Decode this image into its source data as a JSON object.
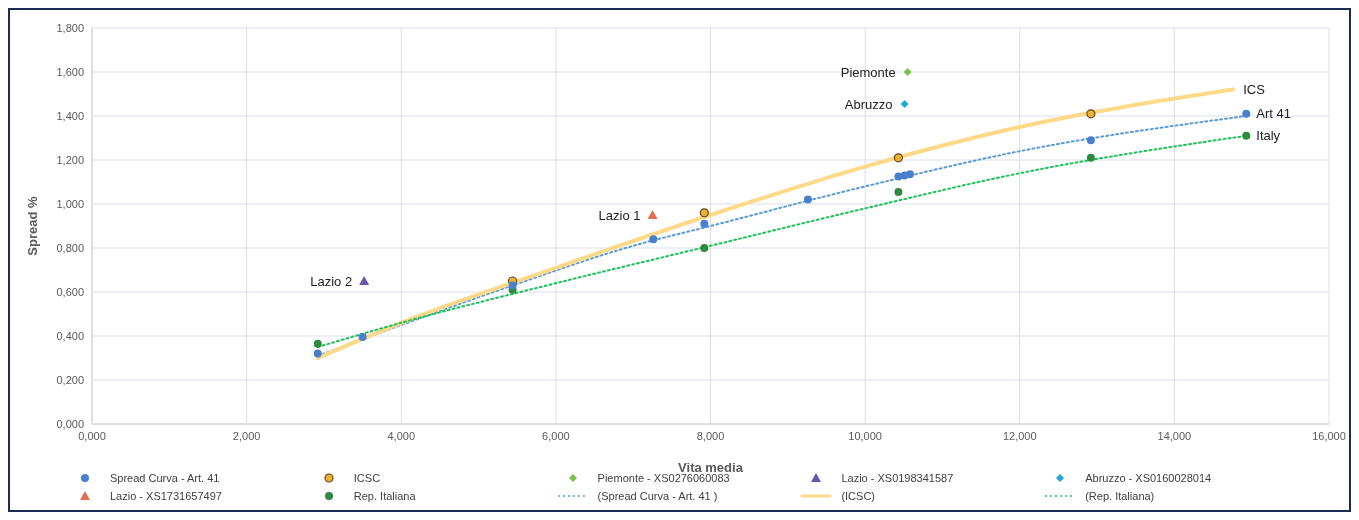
{
  "chart_data": {
    "type": "scatter",
    "xlabel": "Vita media",
    "ylabel": "Spread %",
    "xlim": [
      0,
      16
    ],
    "ylim": [
      0,
      1.8
    ],
    "xticks": [
      {
        "value": 0,
        "label": "0,000"
      },
      {
        "value": 2,
        "label": "2,000"
      },
      {
        "value": 4,
        "label": "4,000"
      },
      {
        "value": 6,
        "label": "6,000"
      },
      {
        "value": 8,
        "label": "8,000"
      },
      {
        "value": 10,
        "label": "10,000"
      },
      {
        "value": 12,
        "label": "12,000"
      },
      {
        "value": 14,
        "label": "14,000"
      },
      {
        "value": 16,
        "label": "16,000"
      }
    ],
    "yticks": [
      {
        "value": 0,
        "label": "0,000"
      },
      {
        "value": 0.2,
        "label": "0,200"
      },
      {
        "value": 0.4,
        "label": "0,400"
      },
      {
        "value": 0.6,
        "label": "0,600"
      },
      {
        "value": 0.8,
        "label": "0,800"
      },
      {
        "value": 1,
        "label": "1,000"
      },
      {
        "value": 1.2,
        "label": "1,200"
      },
      {
        "value": 1.4,
        "label": "1,400"
      },
      {
        "value": 1.6,
        "label": "1,600"
      },
      {
        "value": 1.8,
        "label": "1,800"
      }
    ],
    "grid": true,
    "legend": "bottom",
    "series": [
      {
        "name": "Spread Curva - Art. 41",
        "marker": "circle",
        "color": "#4a7fd0",
        "x": [
          2.92,
          3.5,
          5.44,
          7.26,
          7.92,
          9.26,
          10.43,
          10.51,
          10.58,
          12.92,
          14.93
        ],
        "values": [
          0.32,
          0.395,
          0.63,
          0.84,
          0.91,
          1.02,
          1.125,
          1.13,
          1.135,
          1.29,
          1.41
        ]
      },
      {
        "name": "ICSC",
        "marker": "circle",
        "color": "#f0b030",
        "x": [
          5.44,
          7.92,
          10.43,
          12.92
        ],
        "values": [
          0.65,
          0.96,
          1.21,
          1.41
        ]
      },
      {
        "name": "Piemonte - XS0276060083",
        "marker": "diamond",
        "color": "#7cc04a",
        "x": [
          10.55
        ],
        "values": [
          1.6
        ]
      },
      {
        "name": "Lazio - XS0198341587",
        "marker": "triangle",
        "color": "#6a55b0",
        "x": [
          3.52
        ],
        "values": [
          0.65
        ]
      },
      {
        "name": "Abruzzo - XS0160028014",
        "marker": "diamond",
        "color": "#20a8d8",
        "x": [
          10.51
        ],
        "values": [
          1.455
        ]
      },
      {
        "name": "Lazio - XS1731657497",
        "marker": "triangle",
        "color": "#e07050",
        "x": [
          7.25
        ],
        "values": [
          0.95
        ]
      },
      {
        "name": "Rep. Italiana",
        "marker": "circle",
        "color": "#2e8b3e",
        "x": [
          2.92,
          5.44,
          7.92,
          10.43,
          12.92,
          14.93
        ],
        "values": [
          0.365,
          0.61,
          0.8,
          1.055,
          1.21,
          1.31
        ]
      },
      {
        "name": "(Spread Curva - Art. 41 )",
        "type": "line",
        "line_style": "dotted",
        "marker": "none",
        "color": "#5b9bd5",
        "x": [
          2.92,
          4,
          5.44,
          7,
          8,
          10,
          12,
          14.93
        ],
        "values": [
          0.31,
          0.45,
          0.63,
          0.81,
          0.9,
          1.08,
          1.24,
          1.4
        ]
      },
      {
        "name": "(ICSC)",
        "type": "line",
        "line_style": "solid",
        "marker": "none",
        "color": "#ffd98a",
        "x": [
          2.92,
          4,
          6,
          8,
          10,
          12,
          14.76
        ],
        "values": [
          0.3,
          0.46,
          0.71,
          0.95,
          1.17,
          1.35,
          1.52
        ]
      },
      {
        "name": "(Rep. Italiana)",
        "type": "line",
        "line_style": "dotted",
        "marker": "none",
        "color": "#1ec25a",
        "x": [
          2.92,
          4,
          6,
          8,
          10,
          12,
          14.93
        ],
        "values": [
          0.35,
          0.46,
          0.64,
          0.81,
          0.98,
          1.14,
          1.31
        ]
      }
    ],
    "annotations": [
      {
        "text": "Lazio 2",
        "x": 3.52,
        "y": 0.65
      },
      {
        "text": "Lazio 1",
        "x": 7.25,
        "y": 0.95
      },
      {
        "text": "Piemonte",
        "x": 10.55,
        "y": 1.6
      },
      {
        "text": "Abruzzo",
        "x": 10.51,
        "y": 1.455
      },
      {
        "text": "ICS",
        "x": 14.76,
        "y": 1.52
      },
      {
        "text": "Art 41",
        "x": 14.93,
        "y": 1.41
      },
      {
        "text": "Italy",
        "x": 14.93,
        "y": 1.31
      }
    ]
  }
}
